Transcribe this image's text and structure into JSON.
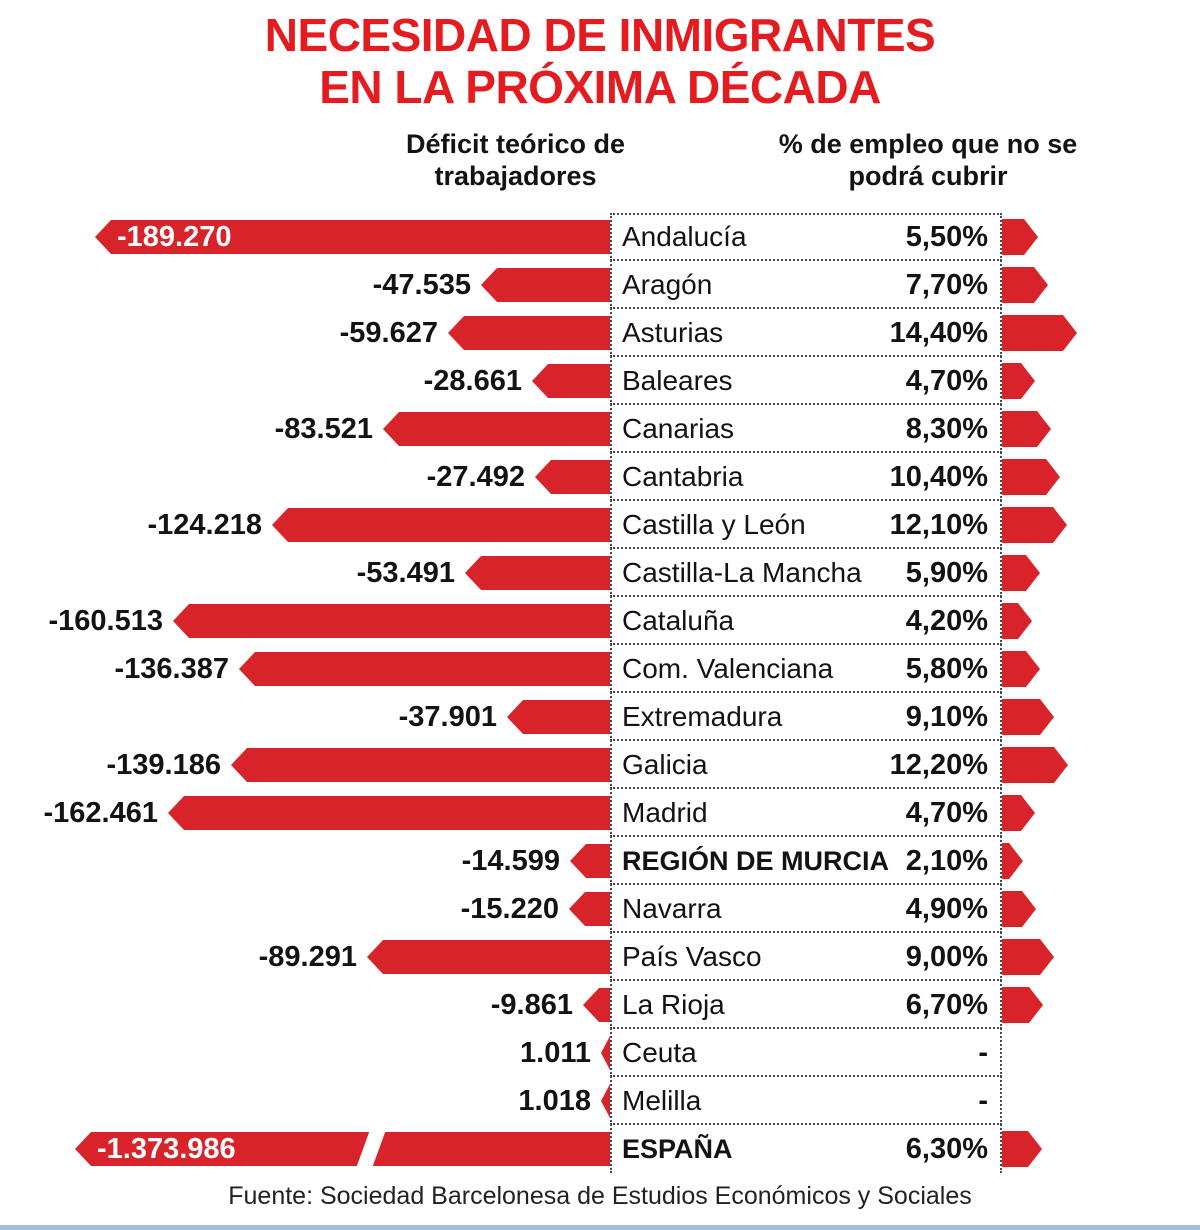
{
  "title": {
    "line1": "NECESIDAD DE INMIGRANTES",
    "line2": "EN LA PRÓXIMA DÉCADA"
  },
  "columns": {
    "left": "Déficit teórico de trabajadores",
    "right": "% de empleo que no se podrá cubrir"
  },
  "source": "Fuente: Sociedad Barcelonesa de Estudios Económicos y Sociales",
  "colors": {
    "bar_red": "#d8232a",
    "title_red": "#e41b1f",
    "dotted_line": "#4a4a4a",
    "bottom_rule_blue": "#9dbfd8",
    "text": "#131313"
  },
  "chart_data": {
    "type": "bar",
    "orientation": "horizontal",
    "title": "NECESIDAD DE INMIGRANTES EN LA PRÓXIMA DÉCADA",
    "categories": [
      "Andalucía",
      "Aragón",
      "Asturias",
      "Baleares",
      "Canarias",
      "Cantabria",
      "Castilla y León",
      "Castilla-La Mancha",
      "Cataluña",
      "Com. Valenciana",
      "Extremadura",
      "Galicia",
      "Madrid",
      "REGIÓN DE MURCIA",
      "Navarra",
      "País Vasco",
      "La Rioja",
      "Ceuta",
      "Melilla",
      "ESPAÑA"
    ],
    "series": [
      {
        "name": "Déficit teórico de trabajadores",
        "values": [
          -189270,
          -47535,
          -59627,
          -28661,
          -83521,
          -27492,
          -124218,
          -53491,
          -160513,
          -136387,
          -37901,
          -139186,
          -162461,
          -14599,
          -15220,
          -89291,
          -9861,
          1011,
          1018,
          -1373986
        ]
      },
      {
        "name": "% de empleo que no se podrá cubrir",
        "values": [
          5.5,
          7.7,
          14.4,
          4.7,
          8.3,
          10.4,
          12.1,
          5.9,
          4.2,
          5.8,
          9.1,
          12.2,
          4.7,
          2.1,
          4.9,
          9.0,
          6.7,
          null,
          null,
          6.3
        ]
      }
    ],
    "rows": [
      {
        "region": "Andalucía",
        "deficit_label": "-189.270",
        "deficit": -189270,
        "pct_label": "5,50%",
        "pct": 5.5,
        "label_inside": true
      },
      {
        "region": "Aragón",
        "deficit_label": "-47.535",
        "deficit": -47535,
        "pct_label": "7,70%",
        "pct": 7.7
      },
      {
        "region": "Asturias",
        "deficit_label": "-59.627",
        "deficit": -59627,
        "pct_label": "14,40%",
        "pct": 14.4
      },
      {
        "region": "Baleares",
        "deficit_label": "-28.661",
        "deficit": -28661,
        "pct_label": "4,70%",
        "pct": 4.7
      },
      {
        "region": "Canarias",
        "deficit_label": "-83.521",
        "deficit": -83521,
        "pct_label": "8,30%",
        "pct": 8.3
      },
      {
        "region": "Cantabria",
        "deficit_label": "-27.492",
        "deficit": -27492,
        "pct_label": "10,40%",
        "pct": 10.4
      },
      {
        "region": "Castilla y León",
        "deficit_label": "-124.218",
        "deficit": -124218,
        "pct_label": "12,10%",
        "pct": 12.1
      },
      {
        "region": "Castilla-La Mancha",
        "deficit_label": "-53.491",
        "deficit": -53491,
        "pct_label": "5,90%",
        "pct": 5.9
      },
      {
        "region": "Cataluña",
        "deficit_label": "-160.513",
        "deficit": -160513,
        "pct_label": "4,20%",
        "pct": 4.2
      },
      {
        "region": "Com. Valenciana",
        "deficit_label": "-136.387",
        "deficit": -136387,
        "pct_label": "5,80%",
        "pct": 5.8
      },
      {
        "region": "Extremadura",
        "deficit_label": "-37.901",
        "deficit": -37901,
        "pct_label": "9,10%",
        "pct": 9.1
      },
      {
        "region": "Galicia",
        "deficit_label": "-139.186",
        "deficit": -139186,
        "pct_label": "12,20%",
        "pct": 12.2
      },
      {
        "region": "Madrid",
        "deficit_label": "-162.461",
        "deficit": -162461,
        "pct_label": "4,70%",
        "pct": 4.7
      },
      {
        "region": "REGIÓN DE MURCIA",
        "deficit_label": "-14.599",
        "deficit": -14599,
        "pct_label": "2,10%",
        "pct": 2.1,
        "emphasis": true
      },
      {
        "region": "Navarra",
        "deficit_label": "-15.220",
        "deficit": -15220,
        "pct_label": "4,90%",
        "pct": 4.9
      },
      {
        "region": "País Vasco",
        "deficit_label": "-89.291",
        "deficit": -89291,
        "pct_label": "9,00%",
        "pct": 9.0
      },
      {
        "region": "La Rioja",
        "deficit_label": "-9.861",
        "deficit": -9861,
        "pct_label": "6,70%",
        "pct": 6.7
      },
      {
        "region": "Ceuta",
        "deficit_label": "1.011",
        "deficit": 1011,
        "pct_label": "-",
        "pct": null
      },
      {
        "region": "Melilla",
        "deficit_label": "1.018",
        "deficit": 1018,
        "pct_label": "-",
        "pct": null
      },
      {
        "region": "ESPAÑA",
        "deficit_label": "-1.373.986",
        "deficit": -1373986,
        "pct_label": "6,30%",
        "pct": 6.3,
        "emphasis": true,
        "label_inside": true,
        "broken": true
      }
    ]
  }
}
